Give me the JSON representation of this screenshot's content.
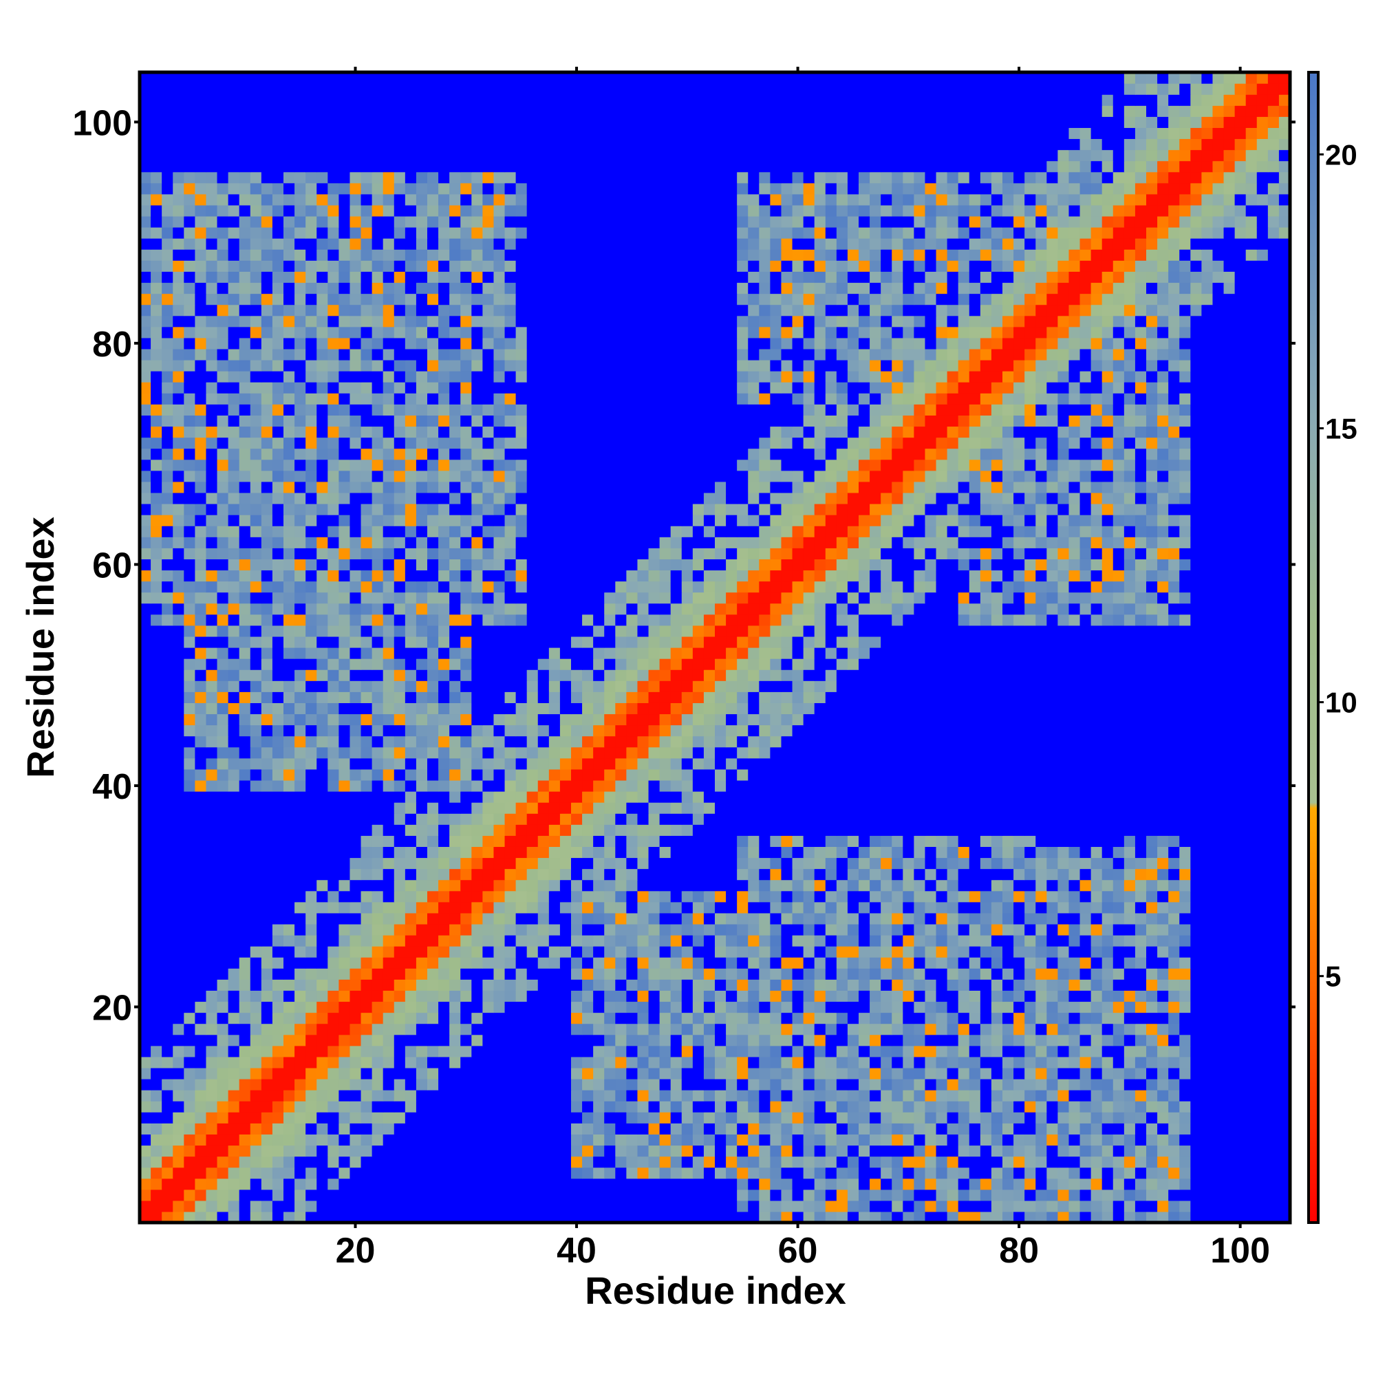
{
  "chart_data": {
    "type": "heatmap",
    "title": "",
    "xlabel": "Residue index",
    "ylabel": "Residue index",
    "n_residues": 104,
    "xlim": [
      0.5,
      104.5
    ],
    "ylim": [
      0.5,
      104.5
    ],
    "x_ticks": [
      20,
      40,
      60,
      80,
      100
    ],
    "y_ticks": [
      20,
      40,
      60,
      80,
      100
    ],
    "colorbar": {
      "ticks": [
        5,
        10,
        15,
        20
      ],
      "range": [
        0.5,
        21.5
      ],
      "out_of_range_color": "#0000ff",
      "stops": [
        {
          "value": 0.5,
          "color": "#ff0000"
        },
        {
          "value": 4.0,
          "color": "#ff6600"
        },
        {
          "value": 8.0,
          "color": "#ffaa00"
        },
        {
          "value": 8.01,
          "color": "#a8c090"
        },
        {
          "value": 11.0,
          "color": "#9fbc8c"
        },
        {
          "value": 15.0,
          "color": "#8aaab4"
        },
        {
          "value": 21.5,
          "color": "#4b78c8"
        }
      ]
    },
    "description_pattern": {
      "diagonal_band_width": 4,
      "contact_blocks": [
        {
          "rows": [
            55,
            95
          ],
          "cols": [
            1,
            35
          ]
        },
        {
          "rows": [
            1,
            35
          ],
          "cols": [
            55,
            95
          ]
        },
        {
          "rows": [
            75,
            95
          ],
          "cols": [
            55,
            90
          ]
        },
        {
          "rows": [
            55,
            90
          ],
          "cols": [
            75,
            95
          ]
        },
        {
          "rows": [
            5,
            30
          ],
          "cols": [
            40,
            70
          ]
        },
        {
          "rows": [
            40,
            70
          ],
          "cols": [
            5,
            30
          ]
        }
      ]
    }
  }
}
